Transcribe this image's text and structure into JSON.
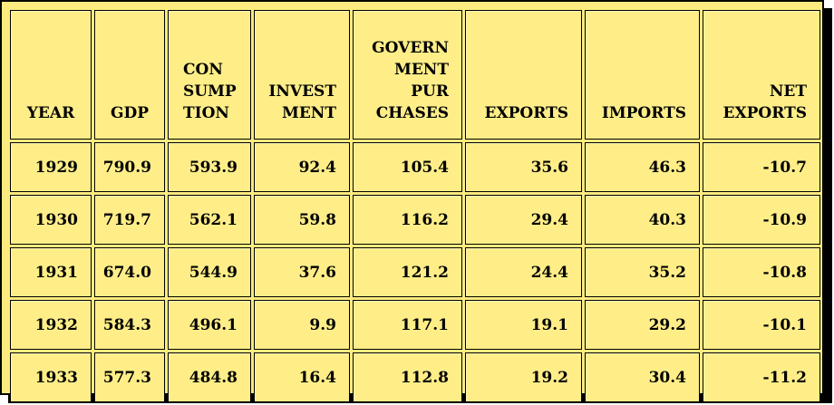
{
  "table": {
    "headers": [
      {
        "key": "year",
        "lines": [
          "YEAR"
        ]
      },
      {
        "key": "gdp",
        "lines": [
          "GDP"
        ]
      },
      {
        "key": "consumption",
        "lines": [
          "CON",
          "SUMP",
          "TION"
        ]
      },
      {
        "key": "investment",
        "lines": [
          "INVEST",
          "MENT"
        ]
      },
      {
        "key": "government",
        "lines": [
          "GOVERN",
          "MENT",
          "PUR",
          "CHASES"
        ]
      },
      {
        "key": "exports",
        "lines": [
          "EXPORTS"
        ]
      },
      {
        "key": "imports",
        "lines": [
          "IMPORTS"
        ]
      },
      {
        "key": "net_exports",
        "lines": [
          "NET",
          "EXPORTS"
        ]
      }
    ],
    "rows": [
      [
        "1929",
        "790.9",
        "593.9",
        "92.4",
        "105.4",
        "35.6",
        "46.3",
        "-10.7"
      ],
      [
        "1930",
        "719.7",
        "562.1",
        "59.8",
        "116.2",
        "29.4",
        "40.3",
        "-10.9"
      ],
      [
        "1931",
        "674.0",
        "544.9",
        "37.6",
        "121.2",
        "24.4",
        "35.2",
        "-10.8"
      ],
      [
        "1932",
        "584.3",
        "496.1",
        "9.9",
        "117.1",
        "19.1",
        "29.2",
        "-10.1"
      ],
      [
        "1933",
        "577.3",
        "484.8",
        "16.4",
        "112.8",
        "19.2",
        "30.4",
        "-11.2"
      ]
    ]
  },
  "colors": {
    "cell_background": "#ffee88",
    "border": "#000000"
  }
}
